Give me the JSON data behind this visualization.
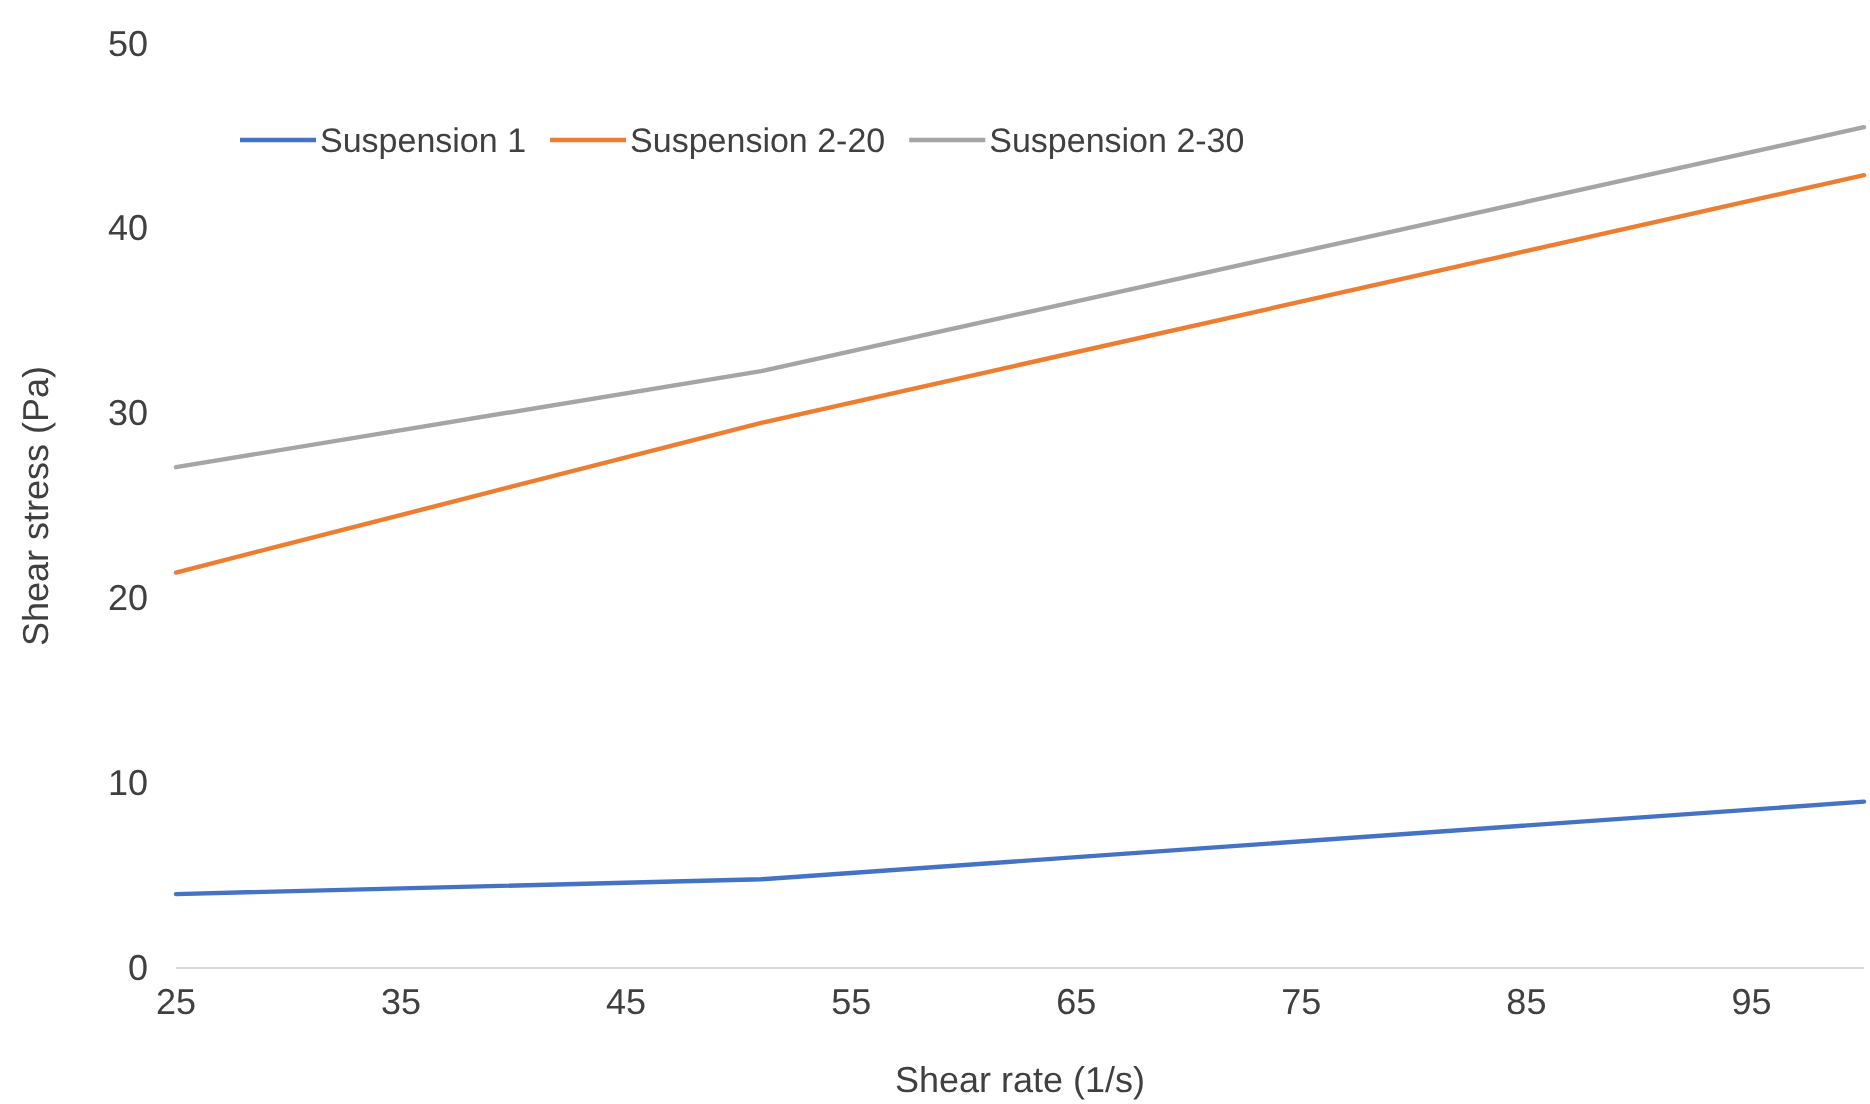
{
  "chart_data": {
    "type": "line",
    "xlabel": "Shear rate (1/s)",
    "ylabel": "Shear stress (Pa)",
    "xlim": [
      25,
      100
    ],
    "xticks": [
      25,
      35,
      45,
      55,
      65,
      75,
      85,
      95
    ],
    "ylim": [
      0,
      50
    ],
    "yticks": [
      0,
      10,
      20,
      30,
      40,
      50
    ],
    "x": [
      25,
      51,
      100
    ],
    "series": [
      {
        "name": "Suspension 1",
        "color": "#4472c4",
        "values": [
          4.0,
          4.8,
          9.0
        ]
      },
      {
        "name": "Suspension 2-20",
        "color": "#ed7d31",
        "values": [
          21.4,
          29.5,
          42.9
        ]
      },
      {
        "name": "Suspension 2-30",
        "color": "#a5a5a5",
        "values": [
          27.1,
          32.3,
          45.5
        ]
      }
    ],
    "legend": "top left",
    "grid": false,
    "marker": "none",
    "line_style": "solid"
  }
}
